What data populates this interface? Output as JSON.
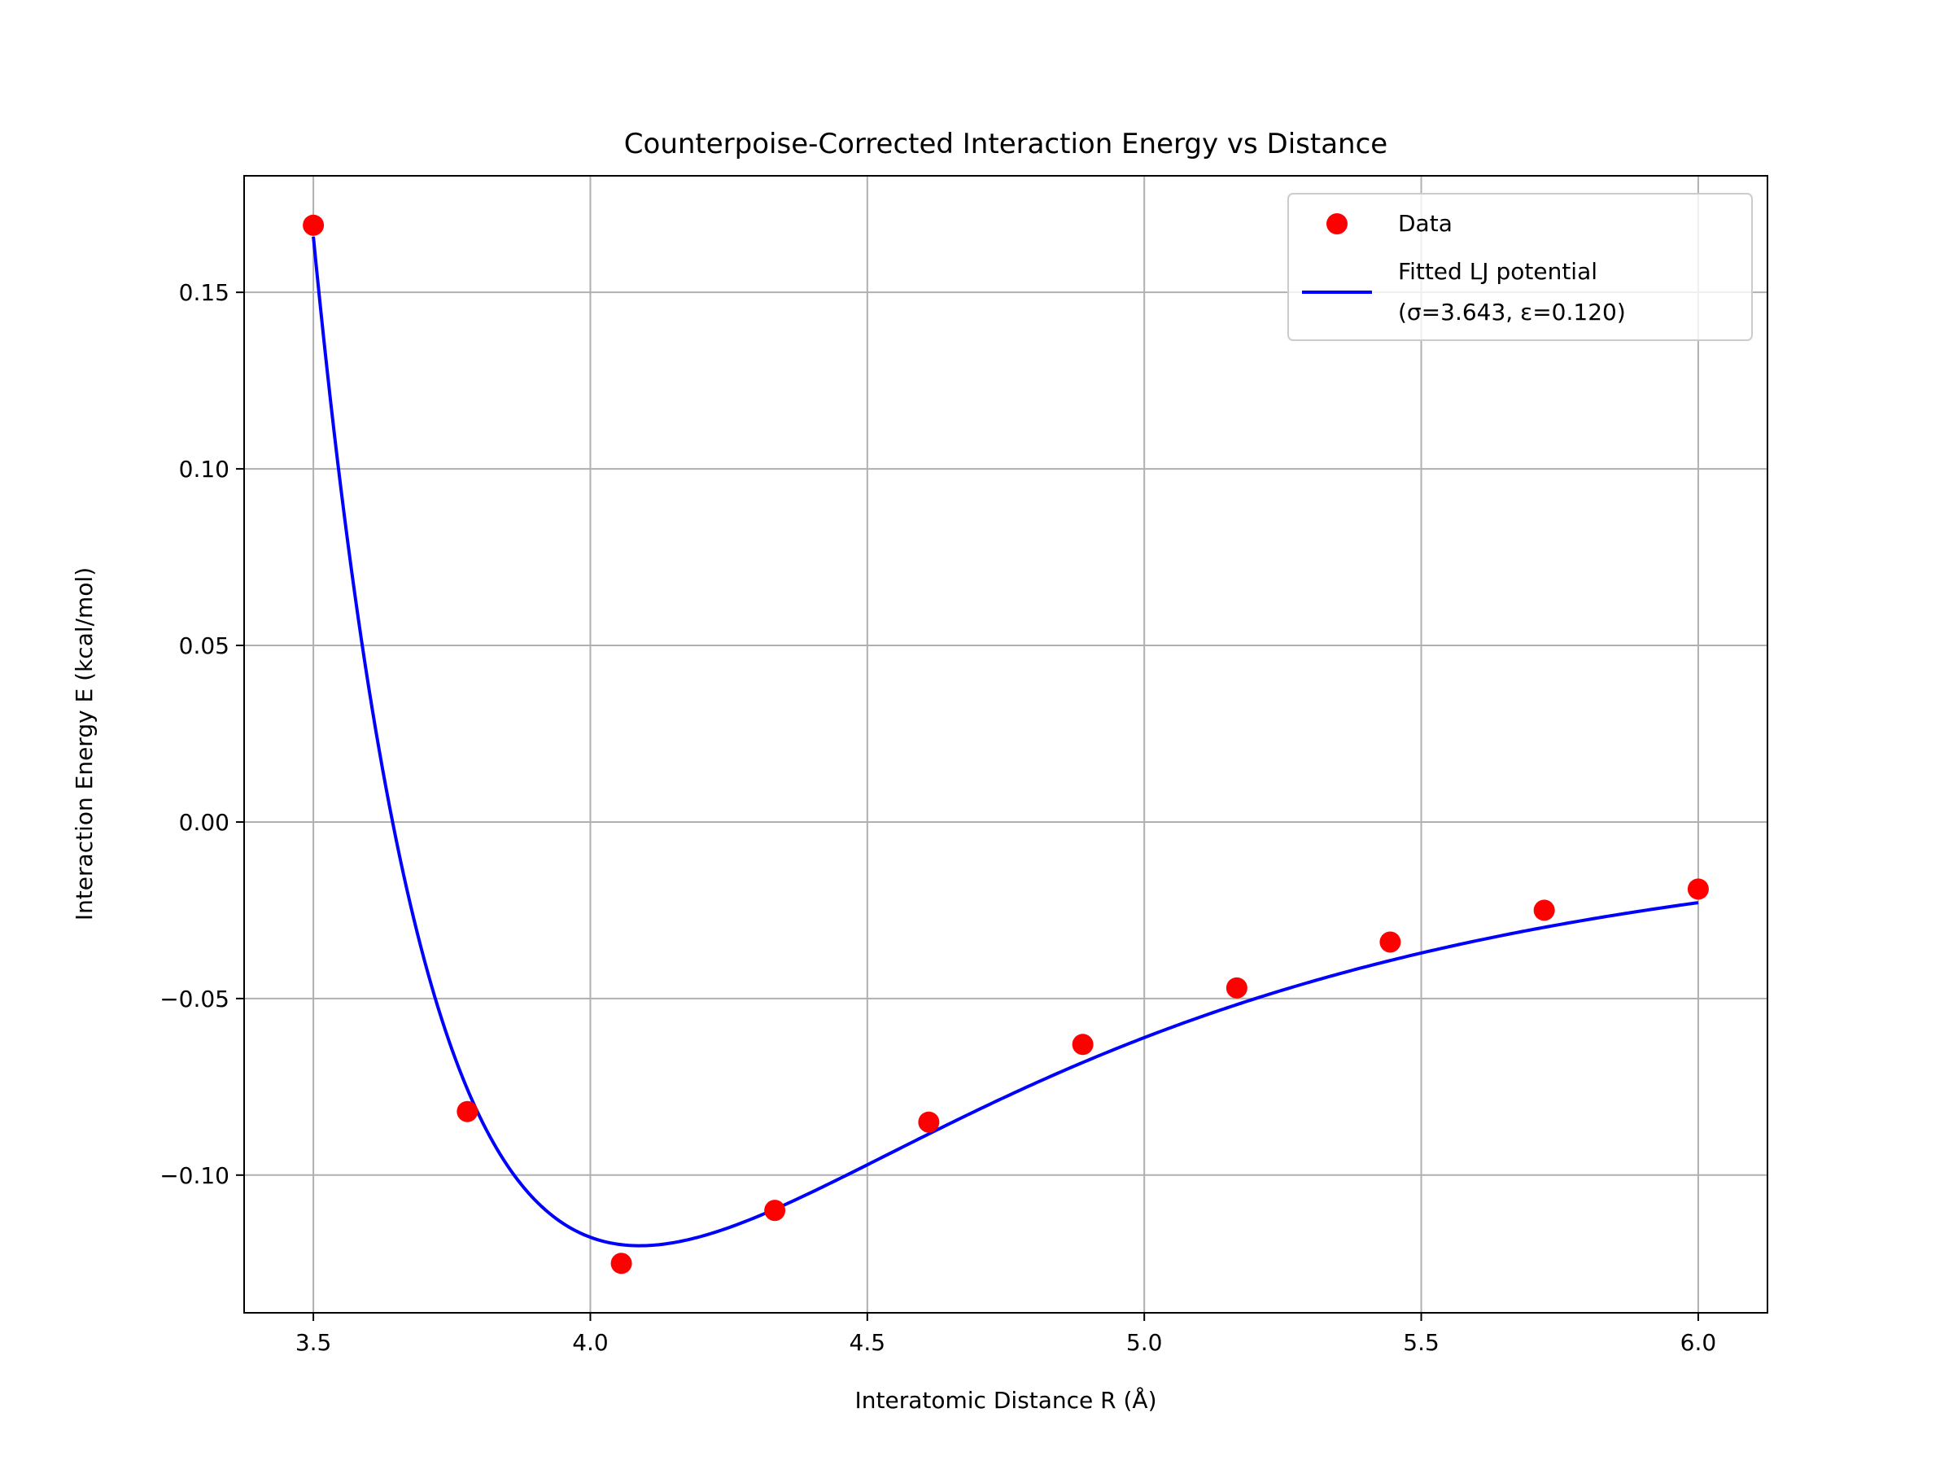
{
  "chart_data": {
    "type": "scatter",
    "title": "Counterpoise-Corrected Interaction Energy vs Distance",
    "xlabel": "Interatomic Distance R (Å)",
    "ylabel": "Interaction Energy E (kcal/mol)",
    "xlim": [
      3.375,
      6.125
    ],
    "ylim": [
      -0.139,
      0.183
    ],
    "xticks": [
      3.5,
      4.0,
      4.5,
      5.0,
      5.5,
      6.0
    ],
    "xtick_labels": [
      "3.5",
      "4.0",
      "4.5",
      "5.0",
      "5.5",
      "6.0"
    ],
    "yticks": [
      -0.1,
      -0.05,
      0.0,
      0.05,
      0.1,
      0.15
    ],
    "ytick_labels": [
      "−0.10",
      "−0.05",
      "0.00",
      "0.05",
      "0.10",
      "0.15"
    ],
    "grid": true,
    "legend_position": "top-right",
    "series": [
      {
        "name": "Data",
        "kind": "scatter",
        "color": "#ff0000",
        "x": [
          3.5,
          3.778,
          4.056,
          4.333,
          4.611,
          4.889,
          5.167,
          5.444,
          5.722,
          6.0
        ],
        "y": [
          0.169,
          -0.082,
          -0.125,
          -0.11,
          -0.085,
          -0.063,
          -0.047,
          -0.034,
          -0.025,
          -0.019
        ]
      },
      {
        "name": "Fitted LJ potential\n(σ=3.643, ε=0.120)",
        "kind": "line",
        "color": "#0000ff",
        "model": "lennard-jones",
        "sigma": 3.643,
        "epsilon": 0.12,
        "x_range": [
          3.5,
          6.0
        ]
      }
    ],
    "legend": {
      "data_label": "Data",
      "fit_label_line1": "Fitted LJ potential",
      "fit_label_line2": "(σ=3.643, ε=0.120)"
    }
  }
}
